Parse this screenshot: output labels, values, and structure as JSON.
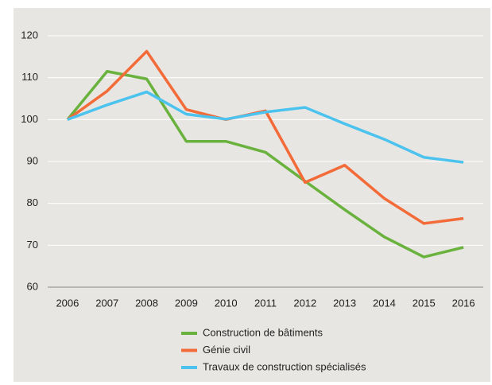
{
  "chart_data": {
    "type": "line",
    "categories": [
      "2006",
      "2007",
      "2008",
      "2009",
      "2010",
      "2011",
      "2012",
      "2013",
      "2014",
      "2015",
      "2016"
    ],
    "series": [
      {
        "name": "Construction de bâtiments",
        "color": "#6ab23e",
        "values": [
          100,
          111.5,
          109.7,
          94.8,
          94.8,
          92.2,
          85.3,
          78.5,
          72,
          67.2,
          69.5
        ]
      },
      {
        "name": "Génie civil",
        "color": "#f26b38",
        "values": [
          100,
          106.8,
          116.3,
          102.4,
          100,
          102.1,
          85,
          89.1,
          81.2,
          75.2,
          76.4
        ]
      },
      {
        "name": "Travaux de construction spécialisés",
        "color": "#4cc3ee",
        "values": [
          100,
          103.5,
          106.6,
          101.3,
          100.1,
          101.8,
          102.9,
          99,
          95.3,
          91,
          89.8
        ]
      }
    ],
    "ylim": [
      60,
      120
    ],
    "yticks": [
      60,
      70,
      80,
      90,
      100,
      110,
      120
    ],
    "grid": true
  }
}
